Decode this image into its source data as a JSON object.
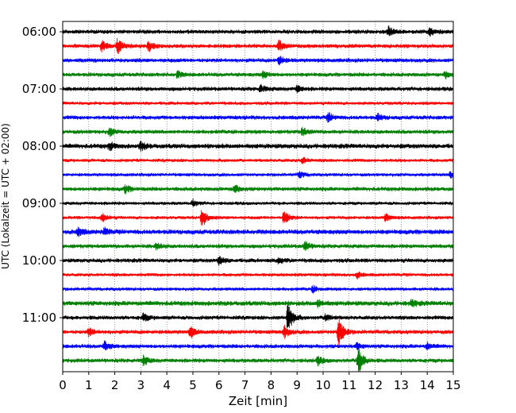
{
  "chart_data": {
    "type": "line",
    "xlabel": "Zeit  [min]",
    "ylabel": "UTC (Lokalzeit = UTC + 02:00)",
    "xlim": [
      0,
      15
    ],
    "xticks": [
      "0",
      "1",
      "2",
      "3",
      "4",
      "5",
      "6",
      "7",
      "8",
      "9",
      "10",
      "11",
      "12",
      "13",
      "14",
      "15"
    ],
    "hour_labels": [
      {
        "label": "06:00",
        "row": 0
      },
      {
        "label": "07:00",
        "row": 4
      },
      {
        "label": "08:00",
        "row": 8
      },
      {
        "label": "09:00",
        "row": 12
      },
      {
        "label": "10:00",
        "row": 16
      },
      {
        "label": "11:00",
        "row": 20
      }
    ],
    "grid": "vertical dotted at each minute",
    "row_colors": [
      "#000000",
      "#ff0000",
      "#0000ff",
      "#008000"
    ],
    "rows": [
      {
        "start": "06:00",
        "color": "#000000",
        "noise": 3,
        "events": [
          {
            "t": 12.5,
            "amp": 6
          },
          {
            "t": 14.1,
            "amp": 5
          }
        ]
      },
      {
        "start": "06:15",
        "color": "#ff0000",
        "noise": 3,
        "events": [
          {
            "t": 1.5,
            "amp": 7
          },
          {
            "t": 2.1,
            "amp": 10
          },
          {
            "t": 3.3,
            "amp": 6
          },
          {
            "t": 8.3,
            "amp": 8
          }
        ]
      },
      {
        "start": "06:30",
        "color": "#0000ff",
        "noise": 3,
        "events": [
          {
            "t": 8.3,
            "amp": 6
          }
        ]
      },
      {
        "start": "06:45",
        "color": "#008000",
        "noise": 3,
        "events": [
          {
            "t": 4.4,
            "amp": 4
          },
          {
            "t": 7.7,
            "amp": 4
          },
          {
            "t": 14.7,
            "amp": 4
          }
        ]
      },
      {
        "start": "07:00",
        "color": "#000000",
        "noise": 3,
        "events": [
          {
            "t": 7.6,
            "amp": 5
          },
          {
            "t": 9.0,
            "amp": 4
          }
        ]
      },
      {
        "start": "07:15",
        "color": "#ff0000",
        "noise": 2.5,
        "events": []
      },
      {
        "start": "07:30",
        "color": "#0000ff",
        "noise": 3,
        "events": [
          {
            "t": 10.2,
            "amp": 6
          },
          {
            "t": 12.1,
            "amp": 4
          }
        ]
      },
      {
        "start": "07:45",
        "color": "#008000",
        "noise": 3,
        "events": [
          {
            "t": 1.8,
            "amp": 5
          },
          {
            "t": 9.2,
            "amp": 5
          }
        ]
      },
      {
        "start": "08:00",
        "color": "#000000",
        "noise": 3.5,
        "events": [
          {
            "t": 1.8,
            "amp": 5
          },
          {
            "t": 3.0,
            "amp": 5
          }
        ]
      },
      {
        "start": "08:15",
        "color": "#ff0000",
        "noise": 2.5,
        "events": [
          {
            "t": 9.2,
            "amp": 4
          }
        ]
      },
      {
        "start": "08:30",
        "color": "#0000ff",
        "noise": 2.5,
        "events": [
          {
            "t": 9.1,
            "amp": 4
          },
          {
            "t": 14.9,
            "amp": 4
          }
        ]
      },
      {
        "start": "08:45",
        "color": "#008000",
        "noise": 3,
        "events": [
          {
            "t": 2.4,
            "amp": 5
          },
          {
            "t": 6.6,
            "amp": 5
          }
        ]
      },
      {
        "start": "09:00",
        "color": "#000000",
        "noise": 2.5,
        "events": [
          {
            "t": 5.0,
            "amp": 4
          }
        ]
      },
      {
        "start": "09:15",
        "color": "#ff0000",
        "noise": 2.5,
        "events": [
          {
            "t": 1.5,
            "amp": 6
          },
          {
            "t": 5.35,
            "amp": 13
          },
          {
            "t": 8.5,
            "amp": 10
          },
          {
            "t": 12.4,
            "amp": 5
          }
        ]
      },
      {
        "start": "09:30",
        "color": "#0000ff",
        "noise": 3.5,
        "events": [
          {
            "t": 0.6,
            "amp": 5
          },
          {
            "t": 1.6,
            "amp": 4
          }
        ]
      },
      {
        "start": "09:45",
        "color": "#008000",
        "noise": 3,
        "events": [
          {
            "t": 3.6,
            "amp": 4
          },
          {
            "t": 9.3,
            "amp": 6
          }
        ]
      },
      {
        "start": "10:00",
        "color": "#000000",
        "noise": 3,
        "events": [
          {
            "t": 6.0,
            "amp": 6
          },
          {
            "t": 8.3,
            "amp": 4
          }
        ]
      },
      {
        "start": "10:15",
        "color": "#ff0000",
        "noise": 2.5,
        "events": [
          {
            "t": 11.3,
            "amp": 4
          }
        ]
      },
      {
        "start": "10:30",
        "color": "#0000ff",
        "noise": 2.5,
        "events": [
          {
            "t": 9.6,
            "amp": 4
          }
        ]
      },
      {
        "start": "10:45",
        "color": "#008000",
        "noise": 3.5,
        "events": [
          {
            "t": 9.8,
            "amp": 4
          },
          {
            "t": 13.4,
            "amp": 4
          }
        ]
      },
      {
        "start": "11:00",
        "color": "#000000",
        "noise": 3,
        "events": [
          {
            "t": 3.1,
            "amp": 5
          },
          {
            "t": 8.65,
            "amp": 20
          },
          {
            "t": 10.1,
            "amp": 5
          }
        ]
      },
      {
        "start": "11:15",
        "color": "#ff0000",
        "noise": 3,
        "events": [
          {
            "t": 1.0,
            "amp": 5
          },
          {
            "t": 4.9,
            "amp": 7
          },
          {
            "t": 8.5,
            "amp": 8
          },
          {
            "t": 10.6,
            "amp": 20
          }
        ]
      },
      {
        "start": "11:30",
        "color": "#0000ff",
        "noise": 3,
        "events": [
          {
            "t": 1.6,
            "amp": 6
          },
          {
            "t": 11.3,
            "amp": 4
          },
          {
            "t": 14.0,
            "amp": 4
          }
        ]
      },
      {
        "start": "11:45",
        "color": "#008000",
        "noise": 3,
        "events": [
          {
            "t": 3.1,
            "amp": 6
          },
          {
            "t": 9.8,
            "amp": 5
          },
          {
            "t": 11.35,
            "amp": 18
          }
        ]
      }
    ]
  }
}
